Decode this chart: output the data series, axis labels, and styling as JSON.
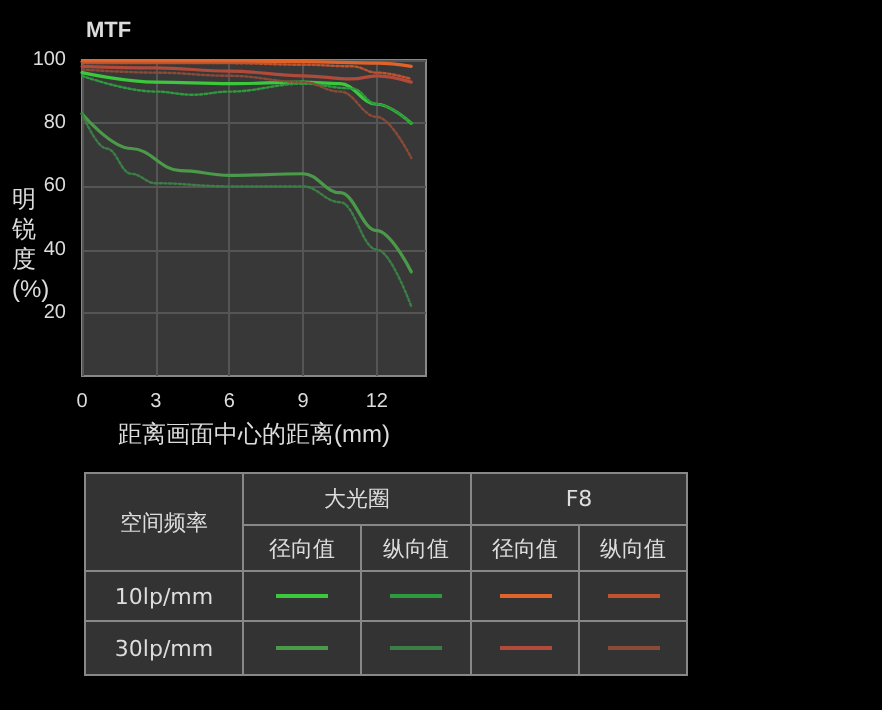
{
  "chart_data": {
    "type": "line",
    "title": "MTF",
    "xlabel": "距离画面中心的距离(mm)",
    "ylabel": "明锐度(%)",
    "xlim": [
      0,
      14
    ],
    "xticks": [
      0,
      3,
      6,
      9,
      12
    ],
    "ylim": [
      0,
      100
    ],
    "yticks": [
      20,
      40,
      60,
      80,
      100
    ],
    "grid": true,
    "marker": "none",
    "annotations": [
      "空间频率",
      "大光圈",
      "F8",
      "径向值",
      "纵向值",
      "径向值",
      "纵向值",
      "10lp/mm",
      "30lp/mm"
    ],
    "series": [
      {
        "color": "#3cc83c",
        "line_style": "solid",
        "x": [
          0,
          3,
          6,
          9,
          10.5,
          12,
          13.4
        ],
        "values": [
          96,
          93,
          92.5,
          93,
          92.5,
          86,
          80
        ]
      },
      {
        "color": "#2e9a3e",
        "line_style": "dotted",
        "x": [
          0,
          3,
          4.5,
          6,
          9,
          11,
          12,
          13.4
        ],
        "values": [
          95,
          90,
          89,
          90,
          92.5,
          91,
          86,
          80
        ]
      },
      {
        "color": "#e0642a",
        "line_style": "solid",
        "x": [
          0,
          6,
          9,
          12,
          13.4
        ],
        "values": [
          99.5,
          99.5,
          99.5,
          99,
          98
        ]
      },
      {
        "color": "#c0522c",
        "line_style": "dotted",
        "x": [
          0,
          6,
          9,
          11,
          12,
          13.4
        ],
        "values": [
          99,
          99,
          98.5,
          98,
          96,
          94
        ]
      },
      {
        "color": "#4a9a4a",
        "line_style": "solid",
        "x": [
          0,
          2,
          4,
          6,
          9,
          10.5,
          12,
          13.4
        ],
        "values": [
          83,
          72,
          65,
          63.5,
          64,
          58,
          46,
          33
        ]
      },
      {
        "color": "#3c7f46",
        "line_style": "dotted",
        "x": [
          0,
          1,
          2,
          3,
          6,
          9,
          10.5,
          12,
          13.4
        ],
        "values": [
          83,
          72,
          64,
          61,
          60,
          60,
          55,
          40,
          22
        ]
      },
      {
        "color": "#b04a3a",
        "line_style": "solid",
        "x": [
          0,
          3,
          6,
          9,
          11,
          12,
          13.4
        ],
        "values": [
          98,
          97.5,
          96.5,
          95,
          94,
          95,
          93
        ]
      },
      {
        "color": "#8a4a38",
        "line_style": "dotted",
        "x": [
          0,
          3,
          6,
          9,
          10.5,
          12,
          13.4
        ],
        "values": [
          97,
          96,
          95,
          93,
          90,
          82,
          69
        ]
      }
    ]
  }
}
